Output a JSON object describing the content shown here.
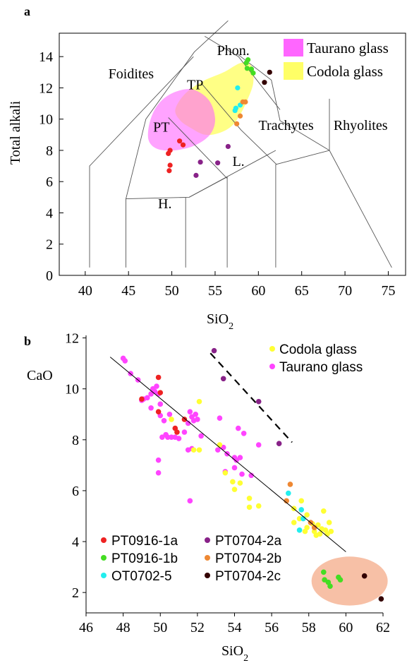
{
  "chart_data": [
    {
      "panel": "a",
      "type": "scatter",
      "xlabel": "SiO",
      "xlabel_sub": "2",
      "ylabel": "Total alkali",
      "xlim": [
        37,
        77
      ],
      "ylim": [
        0,
        15.5
      ],
      "xticks": [
        40,
        45,
        50,
        55,
        60,
        65,
        70,
        75
      ],
      "yticks": [
        0,
        2,
        4,
        6,
        8,
        10,
        12,
        14
      ],
      "field_labels": [
        {
          "text": "Phon.",
          "x": 57.1,
          "y": 14.1
        },
        {
          "text": "Foidites",
          "x": 45.3,
          "y": 12.6
        },
        {
          "text": "TP",
          "x": 52.7,
          "y": 11.9
        },
        {
          "text": "PT",
          "x": 48.8,
          "y": 9.2
        },
        {
          "text": "Trachytes",
          "x": 63.2,
          "y": 9.3
        },
        {
          "text": "Rhyolites",
          "x": 71.8,
          "y": 9.3
        },
        {
          "text": "L.",
          "x": 57.7,
          "y": 7.0
        },
        {
          "text": "H.",
          "x": 49.2,
          "y": 4.3
        }
      ],
      "legend": [
        {
          "name": "Taurano glass",
          "color": "#ff66ff"
        },
        {
          "name": "Codola glass",
          "color": "#ffff66"
        }
      ],
      "series": [
        {
          "name": "PT0916-1a",
          "color": "#ee2222",
          "points": [
            [
              49.6,
              7.8
            ],
            [
              49.8,
              8.0
            ],
            [
              50.9,
              8.6
            ],
            [
              51.3,
              8.35
            ],
            [
              49.8,
              7.05
            ],
            [
              49.7,
              6.7
            ]
          ]
        },
        {
          "name": "PT0916-1b",
          "color": "#44dd22",
          "points": [
            [
              58.6,
              13.6
            ],
            [
              58.8,
              13.8
            ],
            [
              59.2,
              13.2
            ],
            [
              58.7,
              13.25
            ],
            [
              59.4,
              12.95
            ]
          ]
        },
        {
          "name": "OT0702-5",
          "color": "#22eeee",
          "points": [
            [
              57.6,
              12.0
            ],
            [
              57.9,
              10.9
            ],
            [
              57.4,
              10.7
            ],
            [
              57.3,
              10.55
            ]
          ]
        },
        {
          "name": "PT0704-2a",
          "color": "#882288",
          "points": [
            [
              56.5,
              8.25
            ],
            [
              53.3,
              7.25
            ],
            [
              55.3,
              7.2
            ],
            [
              52.8,
              6.4
            ]
          ]
        },
        {
          "name": "PT0704-2b",
          "color": "#ee8833",
          "points": [
            [
              58.2,
              11.1
            ],
            [
              58.5,
              11.1
            ],
            [
              57.9,
              10.2
            ],
            [
              57.5,
              9.7
            ]
          ]
        },
        {
          "name": "PT0704-2c",
          "color": "#330000",
          "points": [
            [
              61.3,
              13.0
            ],
            [
              60.7,
              12.35
            ]
          ]
        }
      ]
    },
    {
      "panel": "b",
      "type": "scatter",
      "xlabel": "SiO",
      "xlabel_sub": "2",
      "ylabel": "CaO",
      "xlim": [
        46,
        62
      ],
      "ylim": [
        1.2,
        12.1
      ],
      "xticks": [
        46,
        48,
        50,
        52,
        54,
        56,
        58,
        60,
        62
      ],
      "yticks": [
        2,
        4,
        6,
        8,
        10,
        12
      ],
      "legend_glass": [
        {
          "name": "Codola glass",
          "color": "#ffff33"
        },
        {
          "name": "Taurano glass",
          "color": "#ff44ff"
        }
      ],
      "legend_samples": [
        {
          "name": "PT0916-1a",
          "color": "#ee2222"
        },
        {
          "name": "PT0704-2a",
          "color": "#882288"
        },
        {
          "name": "PT0916-1b",
          "color": "#44dd22"
        },
        {
          "name": "PT0704-2b",
          "color": "#ee8833"
        },
        {
          "name": "OT0702-5",
          "color": "#22eeee"
        },
        {
          "name": "PT0704-2c",
          "color": "#330000"
        }
      ],
      "trend_line": [
        [
          47.3,
          11.25
        ],
        [
          60.0,
          3.6
        ]
      ],
      "dashed_line": [
        [
          52.7,
          11.4
        ],
        [
          57.1,
          7.9
        ]
      ],
      "series": [
        {
          "name": "Taurano glass",
          "color": "#ff44ff",
          "points": [
            [
              48.0,
              11.2
            ],
            [
              48.1,
              11.1
            ],
            [
              48.4,
              10.6
            ],
            [
              48.8,
              10.35
            ],
            [
              49.0,
              9.55
            ],
            [
              49.1,
              9.6
            ],
            [
              49.3,
              9.65
            ],
            [
              49.5,
              9.8
            ],
            [
              49.6,
              10.0
            ],
            [
              49.7,
              9.9
            ],
            [
              49.8,
              10.1
            ],
            [
              49.9,
              9.8
            ],
            [
              50.0,
              9.4
            ],
            [
              49.5,
              9.25
            ],
            [
              50.0,
              8.95
            ],
            [
              50.2,
              8.75
            ],
            [
              50.5,
              9.0
            ],
            [
              50.3,
              8.2
            ],
            [
              50.1,
              8.1
            ],
            [
              50.4,
              8.1
            ],
            [
              50.6,
              8.1
            ],
            [
              50.8,
              8.1
            ],
            [
              51.0,
              8.05
            ],
            [
              51.3,
              8.3
            ],
            [
              51.5,
              8.65
            ],
            [
              51.7,
              8.9
            ],
            [
              51.8,
              8.75
            ],
            [
              51.9,
              9.0
            ],
            [
              52.0,
              8.8
            ],
            [
              51.6,
              9.1
            ],
            [
              51.7,
              7.65
            ],
            [
              51.5,
              7.6
            ],
            [
              52.2,
              8.15
            ],
            [
              53.2,
              8.85
            ],
            [
              53.6,
              7.45
            ],
            [
              54.0,
              7.3
            ],
            [
              54.1,
              7.2
            ],
            [
              54.3,
              7.3
            ],
            [
              54.5,
              8.25
            ],
            [
              54.2,
              8.45
            ],
            [
              55.3,
              7.8
            ],
            [
              54.0,
              6.9
            ],
            [
              53.5,
              6.75
            ],
            [
              54.4,
              6.65
            ],
            [
              53.1,
              7.6
            ],
            [
              49.9,
              7.2
            ],
            [
              49.9,
              6.7
            ],
            [
              51.6,
              5.6
            ],
            [
              54.9,
              6.6
            ],
            [
              53.4,
              7.7
            ]
          ]
        },
        {
          "name": "Codola glass",
          "color": "#ffff33",
          "points": [
            [
              52.1,
              9.5
            ],
            [
              50.6,
              8.8
            ],
            [
              51.8,
              7.6
            ],
            [
              52.1,
              7.6
            ],
            [
              53.2,
              7.8
            ],
            [
              53.5,
              6.7
            ],
            [
              53.9,
              6.35
            ],
            [
              54.0,
              6.05
            ],
            [
              54.3,
              6.3
            ],
            [
              54.8,
              5.7
            ],
            [
              55.3,
              5.4
            ],
            [
              54.8,
              5.35
            ],
            [
              57.2,
              5.3
            ],
            [
              57.6,
              5.6
            ],
            [
              57.9,
              5.05
            ],
            [
              58.2,
              4.7
            ],
            [
              58.5,
              4.65
            ],
            [
              58.7,
              4.5
            ],
            [
              58.9,
              4.45
            ],
            [
              59.0,
              4.3
            ],
            [
              58.4,
              4.25
            ],
            [
              58.8,
              5.2
            ],
            [
              59.1,
              4.75
            ],
            [
              59.2,
              4.4
            ],
            [
              57.5,
              4.9
            ],
            [
              57.8,
              4.4
            ],
            [
              57.9,
              4.55
            ],
            [
              58.3,
              4.4
            ],
            [
              58.6,
              4.3
            ],
            [
              57.2,
              4.75
            ]
          ]
        },
        {
          "name": "PT0916-1a",
          "color": "#ee2222",
          "points": [
            [
              49.9,
              10.45
            ],
            [
              49.0,
              9.6
            ],
            [
              49.9,
              9.1
            ],
            [
              50.0,
              9.85
            ],
            [
              51.3,
              8.8
            ],
            [
              50.8,
              8.45
            ],
            [
              50.9,
              8.3
            ]
          ]
        },
        {
          "name": "PT0704-2a",
          "color": "#882288",
          "points": [
            [
              52.9,
              11.5
            ],
            [
              53.4,
              10.4
            ],
            [
              55.3,
              9.5
            ],
            [
              56.4,
              7.85
            ]
          ]
        },
        {
          "name": "PT0704-2b",
          "color": "#ee8833",
          "points": [
            [
              57.0,
              6.25
            ],
            [
              56.8,
              5.6
            ],
            [
              58.1,
              4.75
            ],
            [
              58.3,
              4.55
            ]
          ]
        },
        {
          "name": "OT0702-5",
          "color": "#22eeee",
          "points": [
            [
              56.9,
              5.9
            ],
            [
              57.6,
              5.25
            ],
            [
              57.7,
              4.9
            ],
            [
              57.5,
              4.45
            ]
          ]
        },
        {
          "name": "PT0916-1b",
          "color": "#44dd22",
          "points": [
            [
              58.8,
              2.8
            ],
            [
              58.85,
              2.5
            ],
            [
              59.05,
              2.4
            ],
            [
              59.15,
              2.25
            ],
            [
              59.6,
              2.6
            ],
            [
              59.7,
              2.5
            ]
          ]
        },
        {
          "name": "PT0704-2c",
          "color": "#330000",
          "points": [
            [
              61.0,
              2.65
            ],
            [
              61.9,
              1.75
            ]
          ]
        }
      ]
    }
  ]
}
